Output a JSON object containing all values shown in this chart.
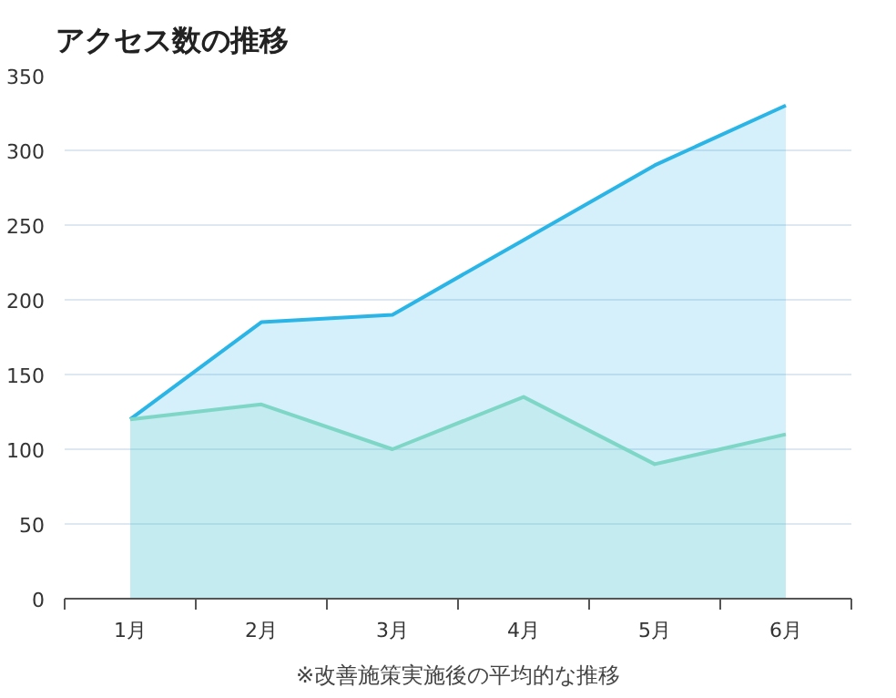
{
  "chart_data": {
    "type": "area",
    "title": "アクセス数の推移",
    "categories": [
      "1月",
      "2月",
      "3月",
      "4月",
      "5月",
      "6月"
    ],
    "series": [
      {
        "color": "#2bb5e6",
        "values": [
          120,
          185,
          190,
          240,
          290,
          330
        ]
      },
      {
        "color": "#7ed6c6",
        "values": [
          120,
          130,
          100,
          135,
          90,
          110
        ]
      }
    ],
    "ylim": [
      0,
      350
    ],
    "yticks": [
      0,
      50,
      100,
      150,
      200,
      250,
      300,
      350
    ],
    "grid": "y",
    "annotations": [
      "※改善施策実施後の平均的な推移"
    ]
  }
}
